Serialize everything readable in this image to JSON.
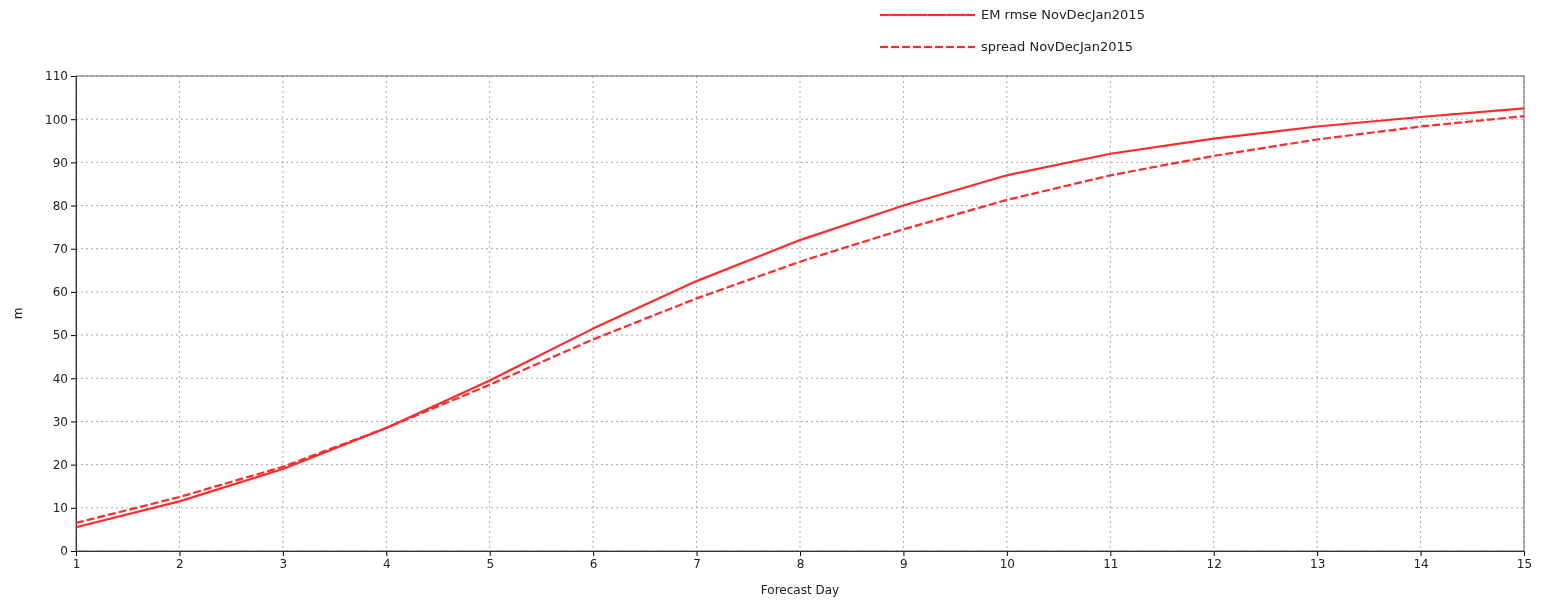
{
  "chart_data": {
    "type": "line",
    "xlabel": "Forecast Day",
    "ylabel": "m",
    "x": [
      1,
      2,
      3,
      4,
      5,
      6,
      7,
      8,
      9,
      10,
      11,
      12,
      13,
      14,
      15
    ],
    "series": [
      {
        "name": "EM rmse NovDecJan2015",
        "color": "#ff2a2a",
        "line_style": "solid",
        "values": [
          5.5,
          11.5,
          19,
          28.5,
          39.5,
          51.5,
          62.5,
          72,
          80,
          87,
          92,
          95.5,
          98.3,
          100.5,
          102.5
        ]
      },
      {
        "name": "spread NovDecJan2015",
        "color": "#ff2a2a",
        "line_style": "dashed",
        "values": [
          6.5,
          12.5,
          19.5,
          28.5,
          38.5,
          49,
          58.5,
          67,
          74.5,
          81.3,
          87,
          91.5,
          95.3,
          98.3,
          100.7
        ]
      }
    ],
    "xlim": [
      1,
      15
    ],
    "xticks": [
      1,
      2,
      3,
      4,
      5,
      6,
      7,
      8,
      9,
      10,
      11,
      12,
      13,
      14,
      15
    ],
    "ylim": [
      0,
      110
    ],
    "yticks": [
      0,
      10,
      20,
      30,
      40,
      50,
      60,
      70,
      80,
      90,
      100,
      110
    ],
    "grid": true,
    "legend": "top right",
    "marker": "none"
  }
}
